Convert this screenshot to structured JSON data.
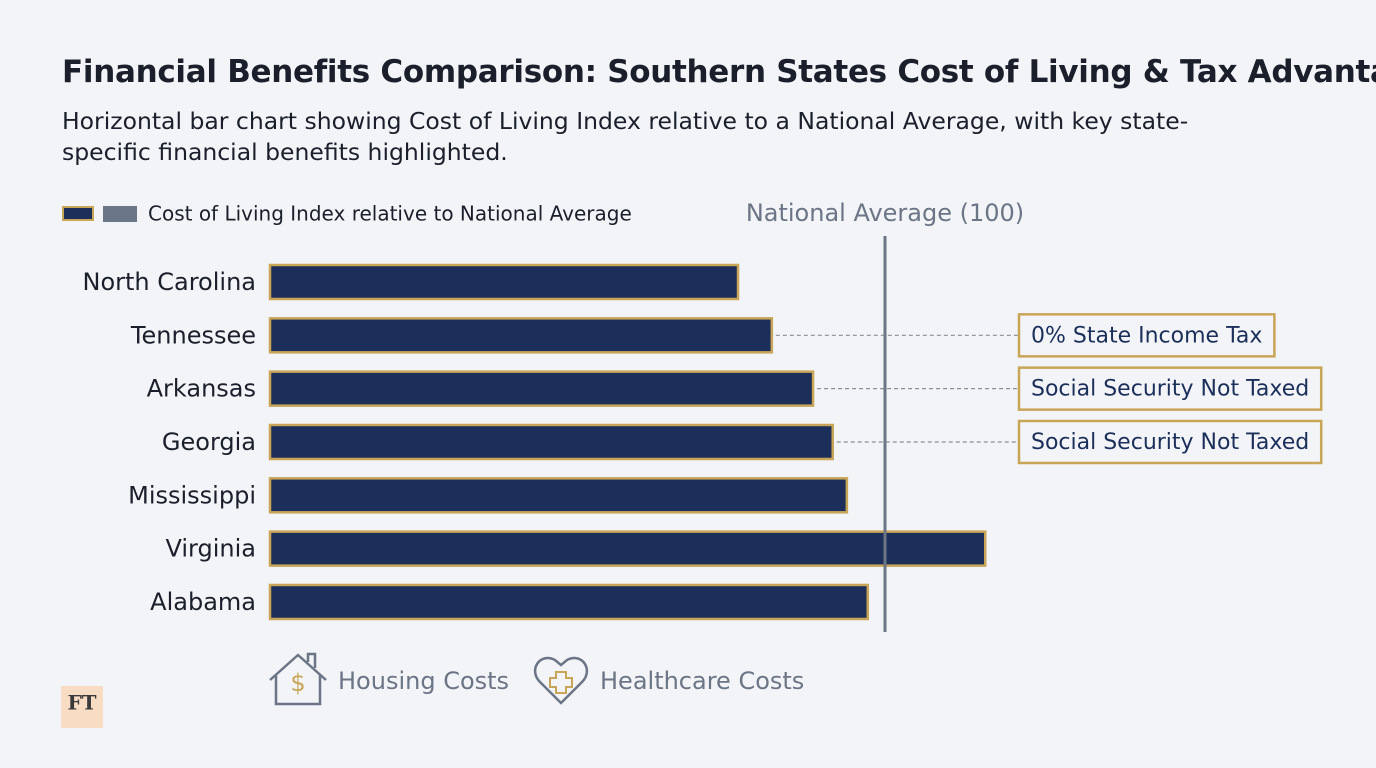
{
  "chart_data": {
    "type": "bar",
    "orientation": "horizontal",
    "title": "Financial Benefits Comparison: Southern States Cost of Living & Tax Advantages",
    "subtitle": "Horizontal bar chart showing Cost of Living Index relative to a National Average, with key state-specific financial benefits highlighted.",
    "categories": [
      "North Carolina",
      "Tennessee",
      "Arkansas",
      "Georgia",
      "Mississippi",
      "Virginia",
      "Alabama"
    ],
    "series": [
      {
        "name": "Cost of Living Index relative to National Average",
        "color": "#1c2f5a",
        "border_color": "#c9a557",
        "values": [
          76.1,
          81.6,
          88.3,
          91.5,
          93.8,
          116.3,
          97.2
        ]
      }
    ],
    "legend_swatches": [
      "#1c2f5a",
      "#6b7788"
    ],
    "xlim": [
      0,
      120
    ],
    "reference_line": {
      "value": 100,
      "label": "National Average (100)",
      "color": "#6b7585"
    },
    "annotations": [
      null,
      "0% State Income Tax",
      "Social Security Not Taxed",
      "Social Security Not Taxed",
      null,
      null,
      null
    ],
    "footer_items": [
      "Housing Costs",
      "Healthcare Costs"
    ],
    "logo": "FT"
  }
}
